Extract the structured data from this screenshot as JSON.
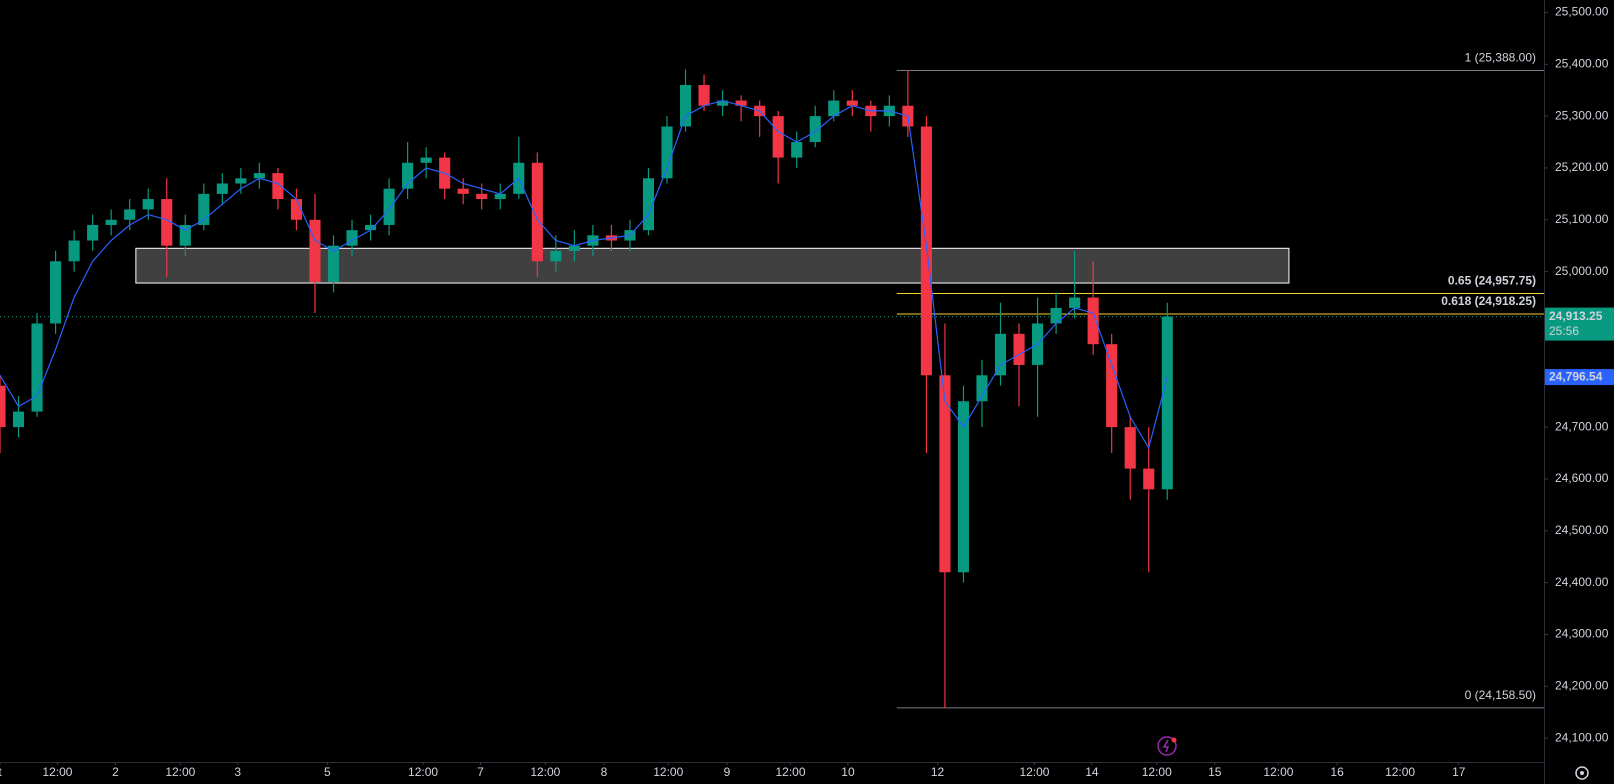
{
  "chart_data": {
    "type": "candlestick",
    "x": [
      0,
      3,
      6,
      9,
      12,
      15,
      18,
      21,
      24,
      27,
      30,
      33,
      36,
      39,
      42,
      45,
      48,
      51,
      54,
      57,
      60,
      63,
      66,
      69,
      72,
      75,
      78,
      81,
      84,
      87,
      90,
      93,
      96,
      99,
      102,
      105,
      108,
      111,
      114,
      117,
      120,
      123,
      126,
      129,
      132,
      135,
      138,
      141,
      144,
      147,
      150,
      153,
      156,
      159,
      162,
      165,
      168,
      171,
      174,
      177,
      180,
      183,
      186,
      189
    ],
    "open": [
      24780,
      24700,
      24730,
      24900,
      25020,
      25060,
      25090,
      25100,
      25120,
      25140,
      25050,
      25090,
      25150,
      25170,
      25180,
      25190,
      25140,
      25100,
      24980,
      25050,
      25080,
      25090,
      25160,
      25210,
      25220,
      25160,
      25150,
      25140,
      25150,
      25210,
      25020,
      25040,
      25050,
      25070,
      25060,
      25080,
      25180,
      25280,
      25360,
      25320,
      25330,
      25320,
      25300,
      25220,
      25250,
      25300,
      25330,
      25320,
      25300,
      25320,
      25280,
      24800,
      24420,
      24750,
      24800,
      24880,
      24820,
      24900,
      24930,
      24950,
      24860,
      24700,
      24620,
      24580
    ],
    "high": [
      24800,
      24760,
      24920,
      25040,
      25080,
      25110,
      25120,
      25140,
      25160,
      25180,
      25110,
      25170,
      25190,
      25200,
      25210,
      25200,
      25160,
      25150,
      25070,
      25100,
      25110,
      25180,
      25250,
      25240,
      25230,
      25180,
      25170,
      25170,
      25260,
      25230,
      25070,
      25080,
      25090,
      25090,
      25100,
      25200,
      25300,
      25390,
      25380,
      25350,
      25340,
      25330,
      25310,
      25270,
      25320,
      25350,
      25350,
      25330,
      25340,
      25388,
      25300,
      24900,
      24780,
      24830,
      24940,
      24900,
      24950,
      24960,
      25040,
      25020,
      24880,
      24720,
      24700,
      24940
    ],
    "low": [
      24650,
      24680,
      24720,
      24880,
      25000,
      25040,
      25070,
      25080,
      25100,
      24990,
      25030,
      25080,
      25130,
      25150,
      25160,
      25120,
      25080,
      24920,
      24960,
      25030,
      25060,
      25070,
      25140,
      25180,
      25140,
      25130,
      25120,
      25120,
      25140,
      24990,
      25000,
      25020,
      25030,
      25040,
      25040,
      25070,
      25170,
      25270,
      25310,
      25300,
      25290,
      25260,
      25170,
      25200,
      25240,
      25290,
      25300,
      25270,
      25280,
      25260,
      24650,
      24158,
      24400,
      24700,
      24780,
      24740,
      24720,
      24880,
      24910,
      24840,
      24650,
      24560,
      24420,
      24560
    ],
    "close": [
      24700,
      24730,
      24900,
      25020,
      25060,
      25090,
      25100,
      25120,
      25140,
      25050,
      25090,
      25150,
      25170,
      25180,
      25190,
      25140,
      25100,
      24980,
      25050,
      25080,
      25090,
      25160,
      25210,
      25220,
      25160,
      25150,
      25140,
      25150,
      25210,
      25020,
      25040,
      25050,
      25070,
      25060,
      25080,
      25180,
      25280,
      25360,
      25320,
      25330,
      25320,
      25300,
      25220,
      25250,
      25300,
      25330,
      25320,
      25300,
      25320,
      25280,
      24800,
      24420,
      24750,
      24800,
      24880,
      24820,
      24900,
      24930,
      24950,
      24860,
      24700,
      24620,
      24580,
      24913.25
    ],
    "up_color": "#089981",
    "down_color": "#f23645",
    "ma": {
      "color": "#2962ff",
      "value_label": "24,796.54",
      "values": [
        24800,
        24740,
        24760,
        24850,
        24950,
        25020,
        25060,
        25090,
        25110,
        25100,
        25080,
        25100,
        25130,
        25160,
        25180,
        25170,
        25140,
        25060,
        25040,
        25060,
        25080,
        25120,
        25170,
        25200,
        25190,
        25170,
        25160,
        25150,
        25180,
        25100,
        25060,
        25050,
        25060,
        25065,
        25070,
        25110,
        25200,
        25300,
        25320,
        25330,
        25320,
        25310,
        25270,
        25250,
        25270,
        25300,
        25320,
        25310,
        25310,
        25300,
        25050,
        24750,
        24700,
        24760,
        24820,
        24840,
        24860,
        24900,
        24930,
        24920,
        24820,
        24720,
        24660,
        24796.54
      ]
    },
    "xlim": [
      0,
      250
    ],
    "ylim": [
      24054,
      25524
    ],
    "xticks": [
      {
        "value": 0,
        "label": "t"
      },
      {
        "value": 9.3,
        "label": "12:00"
      },
      {
        "value": 18.7,
        "label": "2"
      },
      {
        "value": 29.2,
        "label": "12:00"
      },
      {
        "value": 38.5,
        "label": "3"
      },
      {
        "value": 53,
        "label": "5"
      },
      {
        "value": 68.5,
        "label": "12:00"
      },
      {
        "value": 77.8,
        "label": "7"
      },
      {
        "value": 88.3,
        "label": "12:00"
      },
      {
        "value": 97.8,
        "label": "8"
      },
      {
        "value": 108.2,
        "label": "12:00"
      },
      {
        "value": 117.7,
        "label": "9"
      },
      {
        "value": 128,
        "label": "12:00"
      },
      {
        "value": 137.3,
        "label": "10"
      },
      {
        "value": 151.8,
        "label": "12"
      },
      {
        "value": 167.5,
        "label": "12:00"
      },
      {
        "value": 176.8,
        "label": "14"
      },
      {
        "value": 187.3,
        "label": "12:00"
      },
      {
        "value": 196.7,
        "label": "15"
      },
      {
        "value": 207,
        "label": "12:00"
      },
      {
        "value": 216.5,
        "label": "16"
      },
      {
        "value": 226.7,
        "label": "12:00"
      },
      {
        "value": 236.2,
        "label": "17"
      }
    ],
    "yticks": [
      {
        "value": 24100,
        "label": "24,100.00"
      },
      {
        "value": 24200,
        "label": "24,200.00"
      },
      {
        "value": 24300,
        "label": "24,300.00"
      },
      {
        "value": 24400,
        "label": "24,400.00"
      },
      {
        "value": 24500,
        "label": "24,500.00"
      },
      {
        "value": 24600,
        "label": "24,600.00"
      },
      {
        "value": 24700,
        "label": "24,700.00"
      },
      {
        "value": 24800,
        "label": "24,800.00"
      },
      {
        "value": 24900,
        "label": "24,900.00"
      },
      {
        "value": 25000,
        "label": "25,000.00"
      },
      {
        "value": 25100,
        "label": "25,100.00"
      },
      {
        "value": 25200,
        "label": "25,200.00"
      },
      {
        "value": 25300,
        "label": "25,300.00"
      },
      {
        "value": 25400,
        "label": "25,400.00"
      },
      {
        "value": 25500,
        "label": "25,500.00"
      }
    ],
    "zone": {
      "x": [
        22,
        208.7
      ],
      "y": [
        24978,
        25045
      ]
    },
    "fib": {
      "x": [
        145.2,
        250
      ],
      "levels": [
        {
          "value": 25388,
          "label": "1 (25,388.00)",
          "color": "#787b86"
        },
        {
          "value": 24957.75,
          "label": "0.65 (24,957.75)",
          "color": "#f2d232"
        },
        {
          "value": 24918.25,
          "label": "0.618 (24,918.25)",
          "color": "#f2d232"
        },
        {
          "value": 24158.5,
          "label": "0 (24,158.50)",
          "color": "#787b86"
        }
      ]
    },
    "last_price": {
      "value": 24913.25,
      "label": "24,913.25",
      "countdown": "25:56"
    }
  }
}
